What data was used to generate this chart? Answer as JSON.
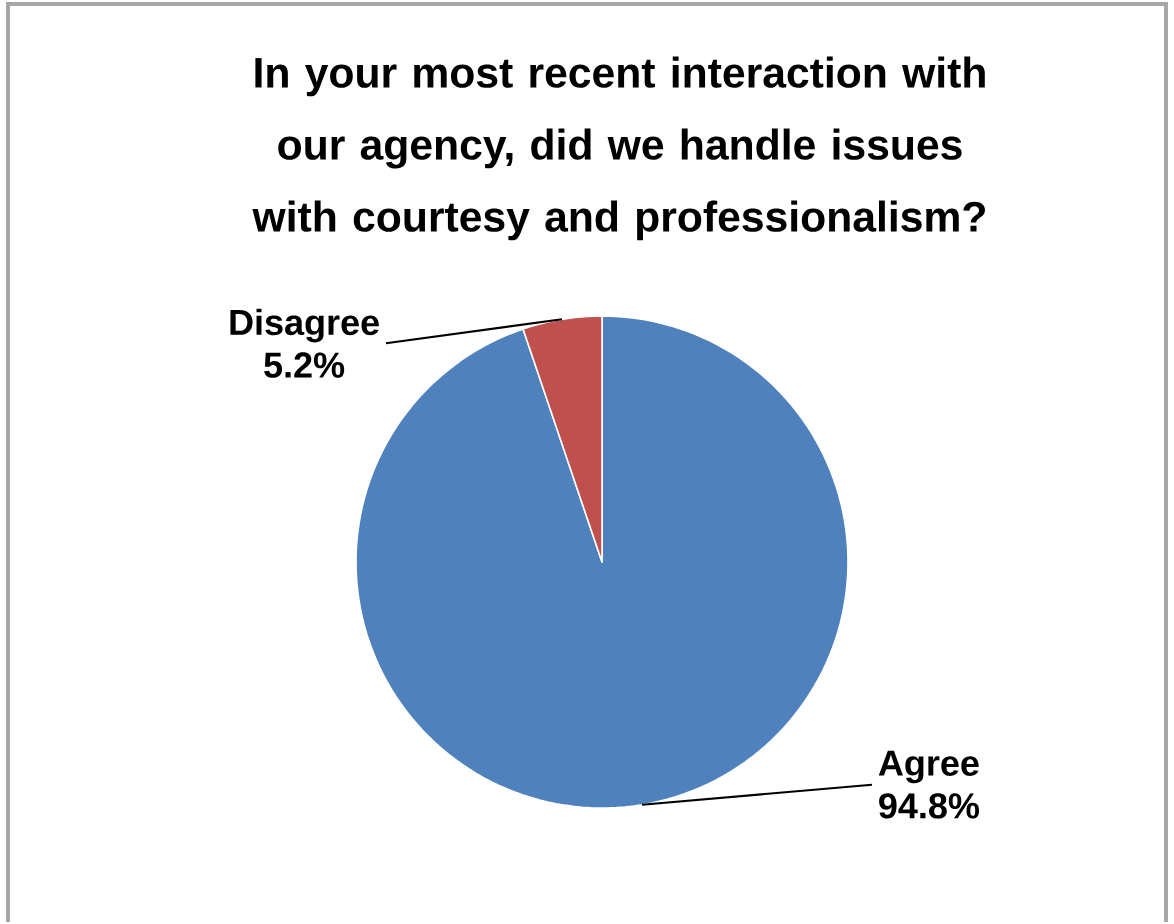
{
  "chart_data": {
    "type": "pie",
    "title": "In your most recent interaction with our agency, did we handle issues  with courtesy and professionalism?",
    "categories": [
      "Agree",
      "Disagree"
    ],
    "values": [
      94.8,
      5.2
    ],
    "colors": [
      "#4f81bd",
      "#c0504d"
    ],
    "value_labels": [
      "94.8%",
      "5.2%"
    ],
    "data_labels": true
  }
}
